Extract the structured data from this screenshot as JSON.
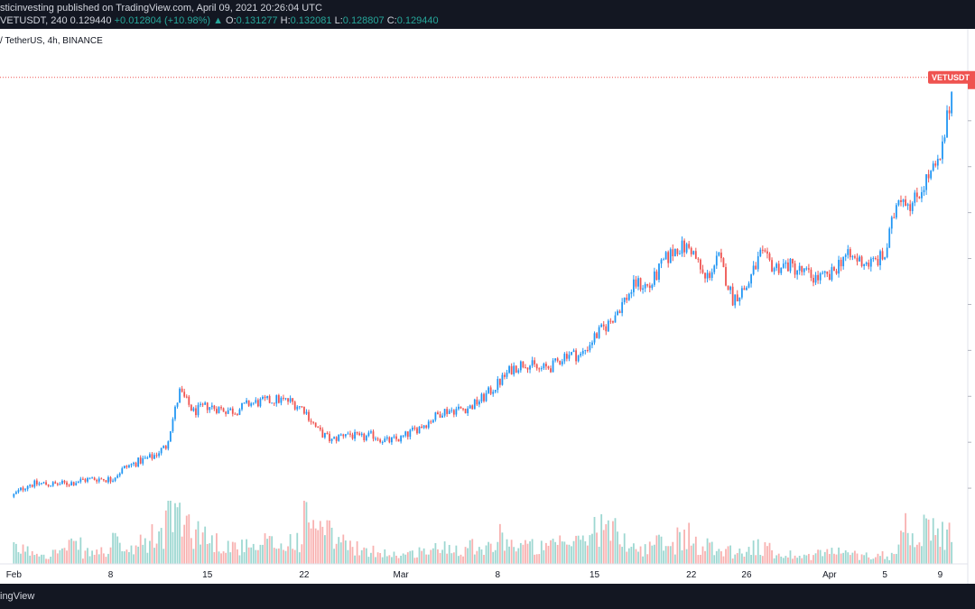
{
  "header": {
    "published": "sticinvesting published on TradingView.com, April 09, 2021 20:26:04 UTC",
    "symbol": "VETUSDT, 240",
    "close_val": "0.129440",
    "change": "+0.012804 (+10.98%)",
    "o_label": "O:",
    "o_val": "0.131277",
    "h_label": "H:",
    "h_val": "0.132081",
    "l_label": "L:",
    "l_val": "0.128807",
    "c_label": "C:",
    "c_val": "0.129440"
  },
  "chart_title": "/ TetherUS, 4h, BINANCE",
  "price_tag": "VETUSDT",
  "footer": "ingView",
  "colors": {
    "up": "#26a69a",
    "down": "#ef5350",
    "accent": "#2196f3",
    "topbar": "#131722"
  },
  "chart_data": {
    "type": "candlestick",
    "x_ticks": [
      "Feb",
      "8",
      "15",
      "22",
      "Mar",
      "8",
      "15",
      "22",
      "26",
      "Apr",
      "5",
      "9"
    ],
    "x_tick_days": [
      1,
      8,
      15,
      22,
      29,
      36,
      43,
      50,
      54,
      60,
      64,
      68
    ],
    "x_range_days": [
      0,
      70
    ],
    "y_range": [
      0.03,
      0.14
    ],
    "grid": false,
    "last_price": 0.12944,
    "bars_per_day": 6,
    "daily_close": [
      0.0385,
      0.0408,
      0.041,
      0.0408,
      0.0411,
      0.0418,
      0.0421,
      0.0419,
      0.0444,
      0.0458,
      0.0468,
      0.0491,
      0.061,
      0.0566,
      0.0579,
      0.0572,
      0.0568,
      0.0584,
      0.0588,
      0.0593,
      0.0589,
      0.0572,
      0.0525,
      0.0503,
      0.0521,
      0.0508,
      0.0515,
      0.0502,
      0.0508,
      0.0527,
      0.0545,
      0.0568,
      0.0571,
      0.0576,
      0.0598,
      0.0627,
      0.066,
      0.0674,
      0.0658,
      0.0666,
      0.0694,
      0.0688,
      0.0729,
      0.0758,
      0.0802,
      0.0846,
      0.0838,
      0.0892,
      0.0925,
      0.0921,
      0.0853,
      0.0901,
      0.0813,
      0.0838,
      0.0907,
      0.0881,
      0.0886,
      0.0871,
      0.0858,
      0.0858,
      0.0905,
      0.0898,
      0.0889,
      0.0905,
      0.1042,
      0.1018,
      0.1072,
      0.1109,
      0.1294
    ],
    "daily_volume": [
      18,
      16,
      13,
      17,
      22,
      14,
      15,
      26,
      16,
      25,
      34,
      68,
      51,
      40,
      28,
      24,
      21,
      18,
      26,
      22,
      30,
      56,
      40,
      30,
      22,
      14,
      16,
      12,
      12,
      16,
      18,
      22,
      20,
      24,
      22,
      34,
      24,
      22,
      20,
      24,
      26,
      34,
      46,
      40,
      28,
      18,
      26,
      22,
      36,
      24,
      22,
      18,
      14,
      22,
      18,
      12,
      12,
      10,
      14,
      16,
      12,
      10,
      12,
      10,
      46,
      44,
      38,
      36,
      30
    ]
  }
}
